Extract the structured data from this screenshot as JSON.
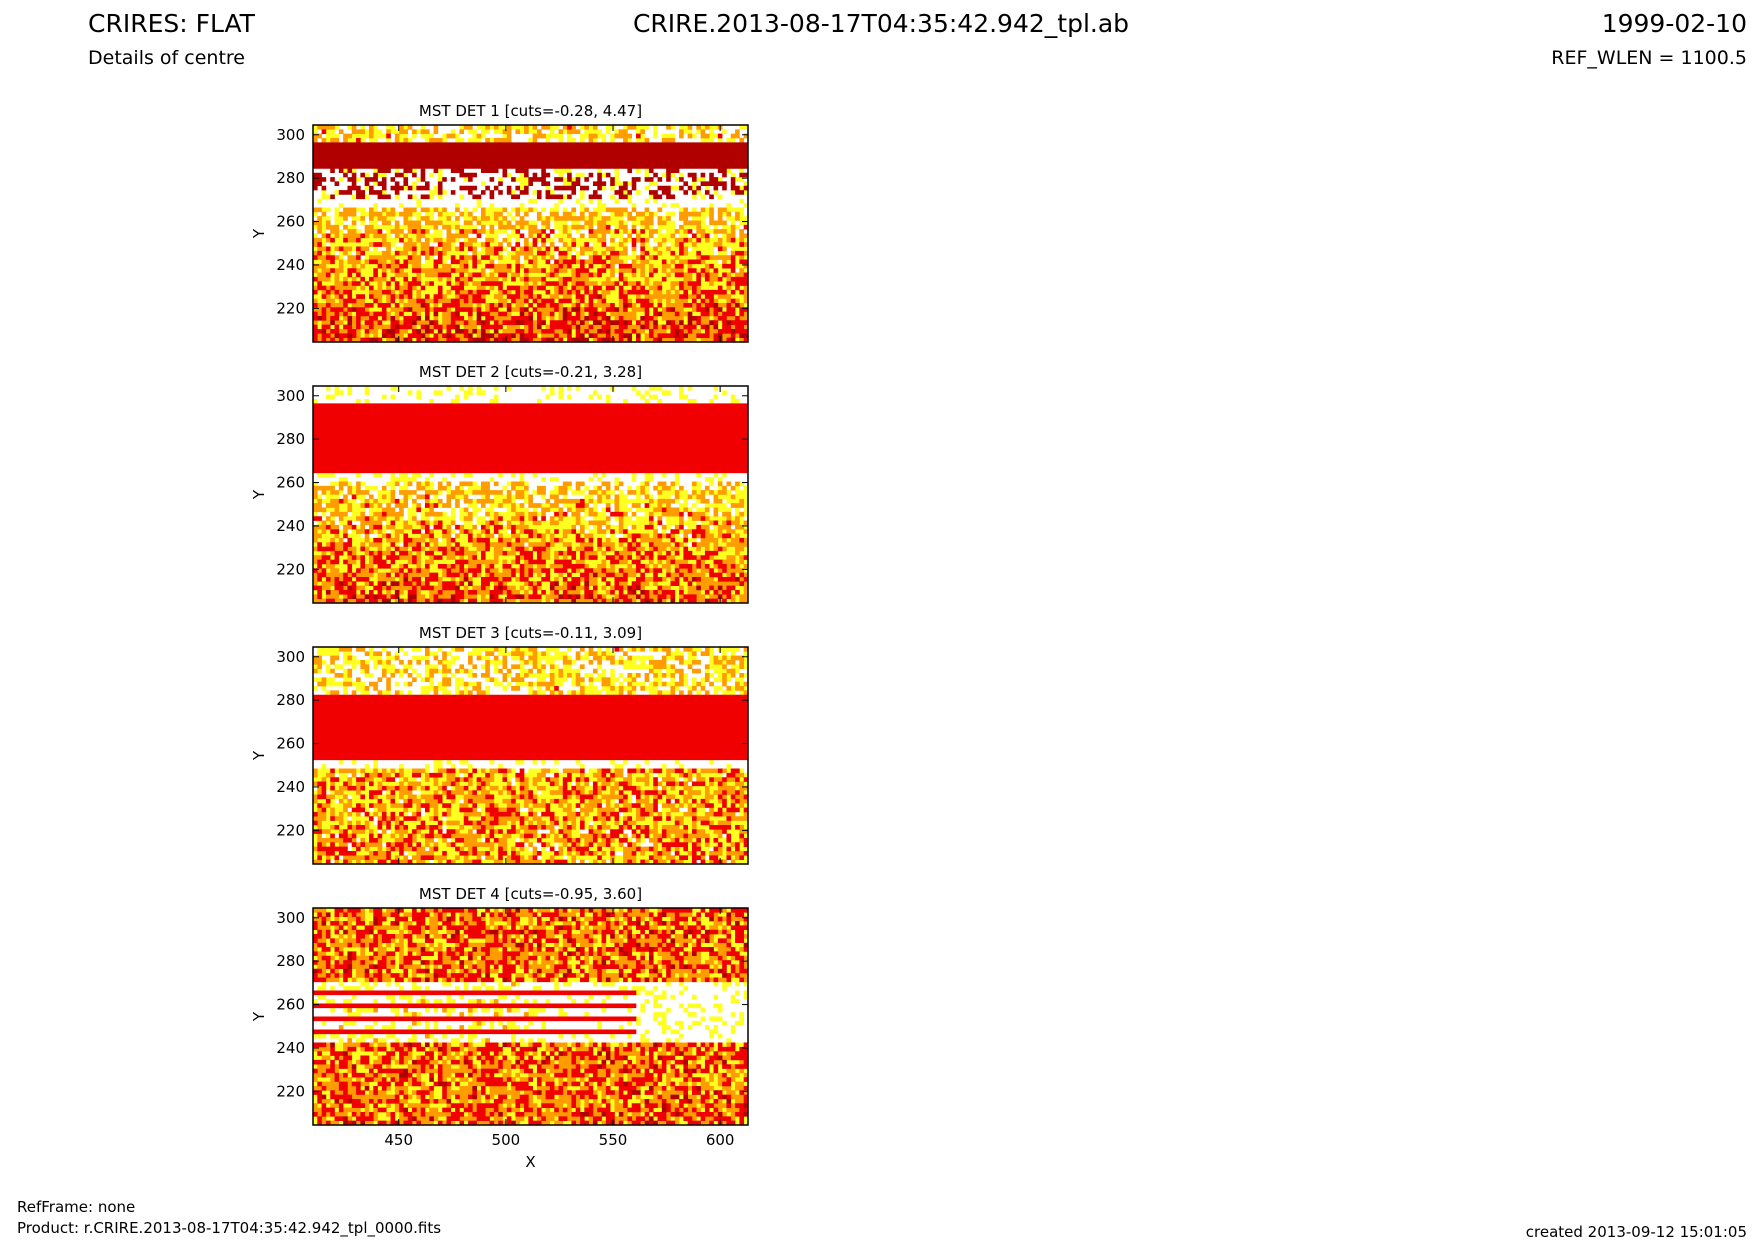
{
  "header": {
    "title": "CRIRES: FLAT",
    "subtitle": "Details of centre",
    "filename": "CRIRE.2013-08-17T04:35:42.942_tpl.ab",
    "date": "1999-02-10",
    "ref_wlen": "REF_WLEN = 1100.5"
  },
  "footer": {
    "ref_frame": "RefFrame: none",
    "product": "Product: r.CRIRE.2013-08-17T04:35:42.942_tpl_0000.fits",
    "created": "created 2013-09-12 15:01:05"
  },
  "chart_data": [
    {
      "type": "heatmap",
      "title": "MST DET 1 [cuts=-0.28, 4.47]",
      "ylabel": "Y",
      "xlim": [
        410,
        613
      ],
      "ylim": [
        204.5,
        304.5
      ],
      "xticks": [
        450,
        500,
        550,
        600
      ],
      "yticks": [
        220,
        240,
        260,
        280,
        300
      ]
    },
    {
      "type": "heatmap",
      "title": "MST DET 2 [cuts=-0.21, 3.28]",
      "ylabel": "Y",
      "xlim": [
        410,
        613
      ],
      "ylim": [
        204.5,
        304.5
      ],
      "xticks": [
        450,
        500,
        550,
        600
      ],
      "yticks": [
        220,
        240,
        260,
        280,
        300
      ]
    },
    {
      "type": "heatmap",
      "title": "MST DET 3 [cuts=-0.11, 3.09]",
      "ylabel": "Y",
      "xlim": [
        410,
        613
      ],
      "ylim": [
        204.5,
        304.5
      ],
      "xticks": [
        450,
        500,
        550,
        600
      ],
      "yticks": [
        220,
        240,
        260,
        280,
        300
      ]
    },
    {
      "type": "heatmap",
      "title": "MST DET 4 [cuts=-0.95, 3.60]",
      "xlabel": "X",
      "ylabel": "Y",
      "xlim": [
        410,
        613
      ],
      "ylim": [
        204.5,
        304.5
      ],
      "xticks": [
        450,
        500,
        550,
        600
      ],
      "yticks": [
        220,
        240,
        260,
        280,
        300
      ]
    }
  ]
}
